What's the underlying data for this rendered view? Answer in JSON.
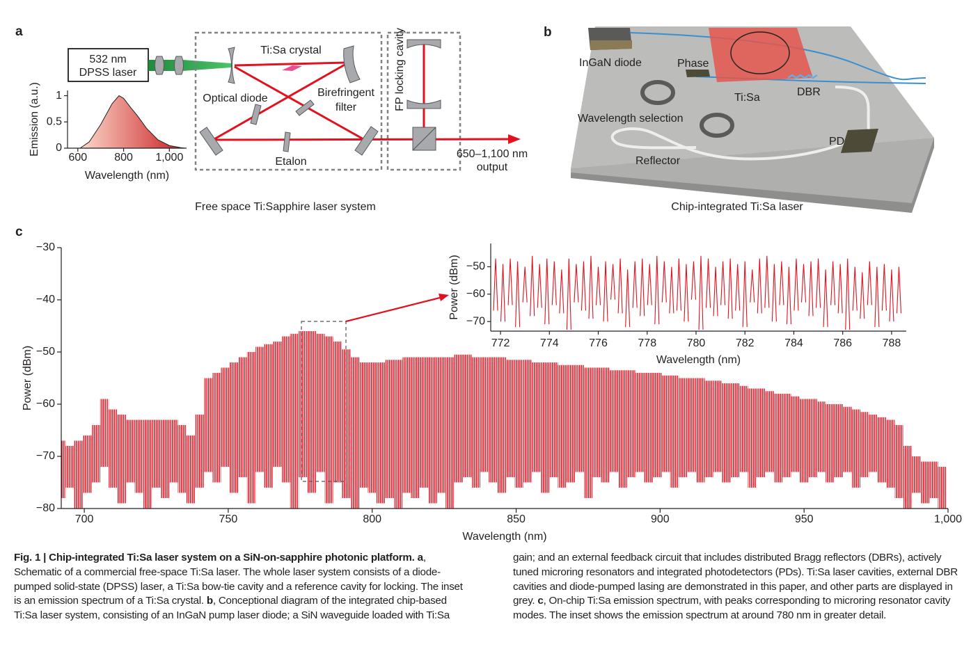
{
  "panel_a": {
    "letter": "a",
    "pump": [
      "532 nm",
      "DPSS laser"
    ],
    "crystal": "Ti:Sa crystal",
    "optical_diode": "Optical diode",
    "filter": [
      "Birefringent",
      "filter"
    ],
    "etalon": "Etalon",
    "locking": "FP locking cavity",
    "output": [
      "650–1,100 nm",
      "output"
    ],
    "caption": "Free space Ti:Sapphire laser system"
  },
  "panel_b": {
    "letter": "b",
    "diode": "InGaN diode",
    "phase": "Phase",
    "tisa": "Ti:Sa",
    "dbr": "DBR",
    "selection": "Wavelength selection",
    "pd": "PD",
    "reflector": "Reflector",
    "caption": "Chip-integrated Ti:Sa laser"
  },
  "panel_c": {
    "letter": "c"
  },
  "chart_data": [
    {
      "type": "area",
      "x_label": "Wavelength (nm)",
      "y_label": "Emission (a.u.)",
      "x": [
        610,
        650,
        700,
        750,
        780,
        800,
        830,
        860,
        900,
        950,
        1000,
        1050,
        1070
      ],
      "values": [
        0,
        0.12,
        0.45,
        0.85,
        1,
        0.95,
        0.78,
        0.62,
        0.38,
        0.16,
        0.05,
        0.01,
        0
      ],
      "gradient": [
        "#fcd9cb",
        "#c81d22"
      ],
      "color": "#222222",
      "xlim": [
        555,
        1075
      ],
      "ylim": [
        0,
        1.1
      ],
      "xticks": [
        600,
        800,
        {
          "value": 1000,
          "label": "1,000"
        }
      ],
      "yticks": [
        0,
        0.5,
        1
      ]
    },
    {
      "type": "band",
      "x_label": "Wavelength (nm)",
      "y_label": "Power (dBm)",
      "x": [
        692,
        695,
        698,
        701,
        704,
        707,
        710,
        713,
        716,
        719,
        722,
        725,
        728,
        731,
        734,
        737,
        740,
        743,
        746,
        749,
        752,
        755,
        758,
        761,
        764,
        767,
        770,
        773,
        776,
        779,
        782,
        785,
        788,
        791,
        794,
        797,
        800,
        803,
        806,
        809,
        812,
        815,
        818,
        821,
        824,
        827,
        830,
        833,
        836,
        839,
        842,
        845,
        848,
        851,
        854,
        857,
        860,
        863,
        866,
        869,
        872,
        875,
        878,
        881,
        884,
        887,
        890,
        893,
        896,
        899,
        902,
        905,
        908,
        911,
        914,
        917,
        920,
        923,
        926,
        929,
        932,
        935,
        938,
        941,
        944,
        947,
        950,
        953,
        956,
        959,
        962,
        965,
        968,
        971,
        974,
        977,
        980,
        983,
        986,
        989,
        992,
        995,
        998
      ],
      "series": [
        {
          "color": "#e3101d",
          "values": [
            -67,
            -68,
            -67,
            -66,
            -64,
            -59,
            -61,
            -62,
            -63,
            -63,
            -63,
            -63,
            -63,
            -63,
            -64,
            -66,
            -62,
            -55,
            -54,
            -53,
            -52,
            -51,
            -50,
            -49,
            -48.5,
            -48,
            -47,
            -46.5,
            -46,
            -46,
            -46.5,
            -47,
            -48,
            -49.5,
            -51,
            -52,
            -52,
            -52,
            -51.5,
            -51.5,
            -51,
            -51,
            -51,
            -51,
            -51,
            -51,
            -50.5,
            -50.5,
            -51,
            -51,
            -51,
            -51,
            -51.5,
            -51.5,
            -51.5,
            -52,
            -52,
            -52,
            -52.5,
            -52.5,
            -52.5,
            -53,
            -53,
            -53,
            -53.5,
            -53.5,
            -53.5,
            -54,
            -54,
            -54,
            -54.5,
            -54.5,
            -55,
            -55,
            -55,
            -55.5,
            -55.5,
            -56,
            -56,
            -56.5,
            -57,
            -57,
            -57.5,
            -58,
            -58,
            -58.5,
            -59,
            -59,
            -59.5,
            -60,
            -60,
            -60.5,
            -61,
            -61.5,
            -62,
            -62.5,
            -63,
            -64,
            -68,
            -70,
            -71,
            -71,
            -72
          ]
        },
        {
          "color": "#e3101d",
          "values": [
            -78,
            -76,
            -80,
            -77,
            -75,
            -72,
            -76,
            -79,
            -75,
            -77,
            -80,
            -76,
            -78,
            -75,
            -77,
            -79,
            -76,
            -73,
            -75,
            -72,
            -77,
            -74,
            -79,
            -73,
            -76,
            -72,
            -75,
            -80,
            -74,
            -77,
            -73,
            -79,
            -75,
            -78,
            -80,
            -76,
            -77,
            -79,
            -78,
            -80,
            -77,
            -78,
            -76,
            -79,
            -77,
            -80,
            -75,
            -74,
            -76,
            -73,
            -75,
            -77,
            -74,
            -76,
            -75,
            -73,
            -77,
            -74,
            -76,
            -75,
            -73,
            -78,
            -74,
            -75,
            -73,
            -76,
            -74,
            -73,
            -75,
            -74,
            -73,
            -76,
            -74,
            -73,
            -75,
            -74,
            -73,
            -75,
            -74,
            -73,
            -76,
            -74,
            -73,
            -75,
            -74,
            -73,
            -75,
            -74,
            -73,
            -75,
            -74,
            -73,
            -76,
            -74,
            -73,
            -75,
            -76,
            -78,
            -80,
            -77,
            -79,
            -78,
            -80
          ]
        }
      ],
      "xlim": [
        692,
        1000
      ],
      "ylim": [
        -80,
        -30
      ],
      "xticks": [
        700,
        750,
        800,
        850,
        900,
        950,
        {
          "value": 1000,
          "label": "1,000"
        }
      ],
      "yticks": [
        {
          "value": -80,
          "label": "−80"
        },
        {
          "value": -70,
          "label": "−70"
        },
        {
          "value": -60,
          "label": "−60"
        },
        {
          "value": -50,
          "label": "−50"
        },
        {
          "value": -40,
          "label": "−40"
        },
        {
          "value": -30,
          "label": "−30"
        }
      ]
    },
    {
      "type": "comb",
      "x_label": "Wavelength (nm)",
      "y_label": "Power (dBm)",
      "x": [
        771.8,
        772.1,
        772.4,
        772.7,
        773,
        773.3,
        773.6,
        773.9,
        774.2,
        774.5,
        774.8,
        775.1,
        775.4,
        775.7,
        776,
        776.3,
        776.6,
        776.9,
        777.2,
        777.5,
        777.8,
        778.1,
        778.4,
        778.7,
        779,
        779.3,
        779.6,
        779.9,
        780.2,
        780.5,
        780.8,
        781.1,
        781.4,
        781.7,
        782,
        782.3,
        782.6,
        782.9,
        783.2,
        783.5,
        783.8,
        784.1,
        784.4,
        784.7,
        785,
        785.3,
        785.6,
        785.9,
        786.2,
        786.5,
        786.8,
        787.1,
        787.4,
        787.7,
        788,
        788.3
      ],
      "series": [
        {
          "color": "#e3101d",
          "values": [
            -47,
            -49,
            -47,
            -48,
            -50,
            -46,
            -49,
            -47,
            -48,
            -51,
            -47,
            -49,
            -48,
            -46,
            -50,
            -48,
            -49,
            -47,
            -51,
            -48,
            -47,
            -49,
            -46,
            -48,
            -50,
            -47,
            -49,
            -48,
            -46,
            -47,
            -50,
            -48,
            -47,
            -49,
            -48,
            -51,
            -47,
            -46,
            -49,
            -48,
            -50,
            -47,
            -49,
            -48,
            -47,
            -51,
            -48,
            -49,
            -47,
            -50,
            -52,
            -48,
            -50,
            -49,
            -51,
            -50
          ]
        },
        {
          "color": "#e3101d",
          "values": [
            -66,
            -70,
            -64,
            -72,
            -63,
            -68,
            -65,
            -71,
            -64,
            -67,
            -73,
            -63,
            -66,
            -69,
            -64,
            -70,
            -62,
            -67,
            -72,
            -65,
            -68,
            -64,
            -71,
            -63,
            -67,
            -66,
            -70,
            -62,
            -73,
            -65,
            -68,
            -64,
            -69,
            -66,
            -72,
            -63,
            -67,
            -65,
            -70,
            -64,
            -71,
            -66,
            -63,
            -68,
            -65,
            -72,
            -64,
            -67,
            -73,
            -66,
            -69,
            -64,
            -72,
            -66,
            -70,
            -67
          ]
        }
      ],
      "xlim": [
        771.6,
        788.6
      ],
      "ylim": [
        -73.5,
        -41.5
      ],
      "xticks": [
        772,
        774,
        776,
        778,
        780,
        782,
        784,
        786,
        788
      ],
      "yticks": [
        {
          "value": -70,
          "label": "−70"
        },
        {
          "value": -60,
          "label": "−60"
        },
        {
          "value": -50,
          "label": "−50"
        }
      ]
    }
  ],
  "caption": {
    "title": "Fig. 1 | Chip-integrated Ti:Sa laser system on a SiN-on-sapphire photonic platform.",
    "parts": [
      {
        "label": "a",
        "text": ", Schematic of a commercial free-space Ti:Sa laser. The whole laser system consists of a diode-pumped solid-state (DPSS) laser, a Ti:Sa bow-tie cavity and a reference cavity for locking. The inset is an emission spectrum of a Ti:Sa crystal."
      },
      {
        "label": "b",
        "text": ", Conceptional diagram of the integrated chip-based Ti:Sa laser system, consisting of an InGaN pump laser diode; a SiN waveguide loaded with Ti:Sa gain; and an external feedback circuit that includes distributed Bragg reflectors (DBRs), actively tuned microring resonators and integrated photodetectors (PDs). Ti:Sa laser cavities, external DBR cavities and diode-pumped lasing are demonstrated in this paper, and other parts are displayed in grey."
      },
      {
        "label": "c",
        "text": ", On-chip Ti:Sa emission spectrum, with peaks corresponding to microring resonator cavity modes. The inset shows the emission spectrum at around 780 nm in greater detail."
      }
    ]
  }
}
